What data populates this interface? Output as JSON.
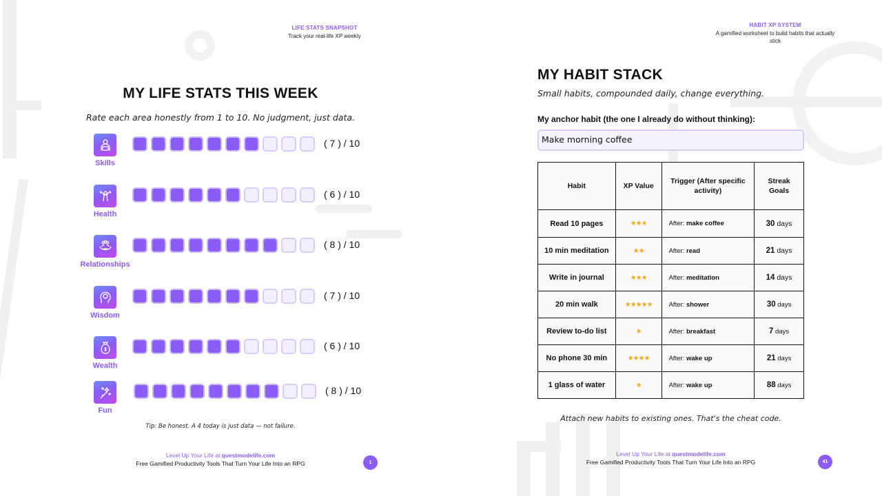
{
  "left_page": {
    "header": {
      "kicker": "LIFE STATS SNAPSHOT",
      "subtitle": "Track your real-life XP weekly"
    },
    "title": "MY LIFE STATS THIS WEEK",
    "intro": "Rate each area honestly from 1 to 10. No judgment, just data.",
    "max_score": 10,
    "stats": [
      {
        "name": "Skills",
        "score": 7,
        "score_text": "( 7 ) / 10",
        "icon": "skills-icon"
      },
      {
        "name": "Health",
        "score": 6,
        "score_text": "( 6 ) / 10",
        "icon": "health-icon"
      },
      {
        "name": "Relationships",
        "score": 8,
        "score_text": "( 8 ) / 10",
        "icon": "relationships-icon"
      },
      {
        "name": "Wisdom",
        "score": 7,
        "score_text": "( 7 ) / 10",
        "icon": "wisdom-icon"
      },
      {
        "name": "Wealth",
        "score": 6,
        "score_text": "( 6 ) / 10",
        "icon": "wealth-icon"
      },
      {
        "name": "Fun",
        "score": 8,
        "score_text": "( 8 ) / 10",
        "icon": "fun-icon"
      }
    ],
    "tip": "Tip: Be honest. A 4 today is just data — not failure.",
    "footer": {
      "line1_prefix": "Level Up Your Life at ",
      "line1_site": "questmodelife.com",
      "line2": "Free Gamified Productivity Tools That Turn Your Life Into an RPG",
      "page_number": "1"
    }
  },
  "right_page": {
    "header": {
      "kicker": "HABIT XP SYSTEM",
      "subtitle": "A gamified worksheet to build habits that actually stick"
    },
    "title": "MY HABIT STACK",
    "subtitle": "Small habits, compounded daily, change everything.",
    "anchor_label": "My anchor habit (the one I already do without thinking):",
    "anchor_value": "Make morning coffee",
    "table": {
      "headers": {
        "habit": "Habit",
        "xp": "XP Value",
        "trigger": "Trigger (After specific activity)",
        "streak": "Streak Goals"
      },
      "trigger_prefix": "After: ",
      "streak_unit": " days",
      "rows": [
        {
          "habit": "Read 10 pages",
          "xp": "★★★",
          "trigger": "make coffee",
          "streak": "30"
        },
        {
          "habit": "10 min meditation",
          "xp": "★★",
          "trigger": "read",
          "streak": "21"
        },
        {
          "habit": "Write in journal",
          "xp": "★★★",
          "trigger": "meditation",
          "streak": "14"
        },
        {
          "habit": "20 min walk",
          "xp": "★★★★★",
          "trigger": "shower",
          "streak": "30"
        },
        {
          "habit": "Review to-do list",
          "xp": "★",
          "trigger": "breakfast",
          "streak": "7"
        },
        {
          "habit": "No phone 30 min",
          "xp": "★★★★",
          "trigger": "wake up",
          "streak": "21"
        },
        {
          "habit": "1 glass of water",
          "xp": "★",
          "trigger": "wake up",
          "streak": "88"
        }
      ]
    },
    "note": "Attach new habits to existing ones. That's the cheat code.",
    "footer": {
      "line1_prefix": "Level Up Your Life at ",
      "line1_site": "questmodelife.com",
      "line2": "Free Gamified Productivity Tools That Turn Your Life Into an RPG",
      "page_number": "41"
    }
  },
  "colors": {
    "accent": "#8b5cf6",
    "box_empty": "#f3efff",
    "box_border": "#d9ccfb",
    "star": "#f6a623"
  }
}
